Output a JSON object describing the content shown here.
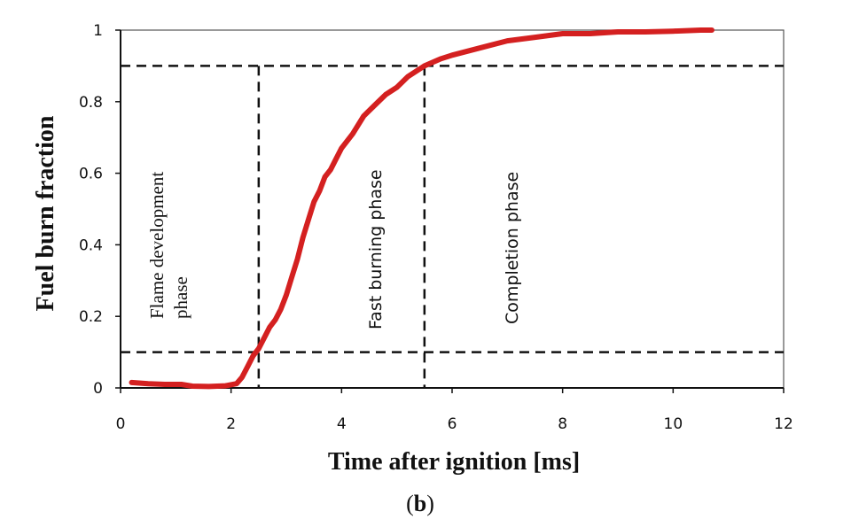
{
  "chart_data": {
    "type": "line",
    "xlabel": "Time after ignition  [ms]",
    "ylabel": "Fuel burn fraction",
    "caption": {
      "open": "(",
      "letter": "b",
      "close": ")"
    },
    "xlim": [
      0,
      12
    ],
    "ylim": [
      0,
      1
    ],
    "x_ticks": [
      "0",
      "2",
      "4",
      "6",
      "8",
      "10",
      "12"
    ],
    "y_ticks": [
      "0",
      "0.2",
      "0.4",
      "0.6",
      "0.8",
      "1"
    ],
    "grid": false,
    "series_color": "#d42020",
    "series": [
      {
        "x": [
          0.2,
          0.5,
          0.8,
          1.1,
          1.3,
          1.6,
          1.9,
          2.1,
          2.2,
          2.3,
          2.4,
          2.5,
          2.6,
          2.7,
          2.8,
          2.9,
          3.0,
          3.1,
          3.2,
          3.3,
          3.4,
          3.5,
          3.6,
          3.7,
          3.8,
          3.9,
          4.0,
          4.2,
          4.4,
          4.6,
          4.8,
          5.0,
          5.2,
          5.5,
          5.8,
          6.0,
          6.5,
          7.0,
          7.5,
          8.0,
          8.5,
          9.0,
          9.5,
          10.0,
          10.5,
          10.7
        ],
        "y": [
          0.015,
          0.012,
          0.01,
          0.01,
          0.005,
          0.004,
          0.006,
          0.012,
          0.03,
          0.06,
          0.09,
          0.11,
          0.14,
          0.17,
          0.19,
          0.22,
          0.26,
          0.31,
          0.36,
          0.42,
          0.47,
          0.52,
          0.55,
          0.59,
          0.61,
          0.64,
          0.67,
          0.71,
          0.76,
          0.79,
          0.82,
          0.84,
          0.87,
          0.9,
          0.92,
          0.93,
          0.95,
          0.97,
          0.98,
          0.99,
          0.99,
          0.995,
          0.995,
          0.997,
          1.0,
          1.0
        ]
      }
    ],
    "reference_lines": {
      "horizontal": [
        0.1,
        0.9
      ],
      "vertical": [
        2.5,
        5.5
      ]
    },
    "phases": [
      {
        "label": "Flame development",
        "label2": "phase"
      },
      {
        "label": "Fast burning  phase"
      },
      {
        "label": "Completion phase"
      }
    ]
  }
}
